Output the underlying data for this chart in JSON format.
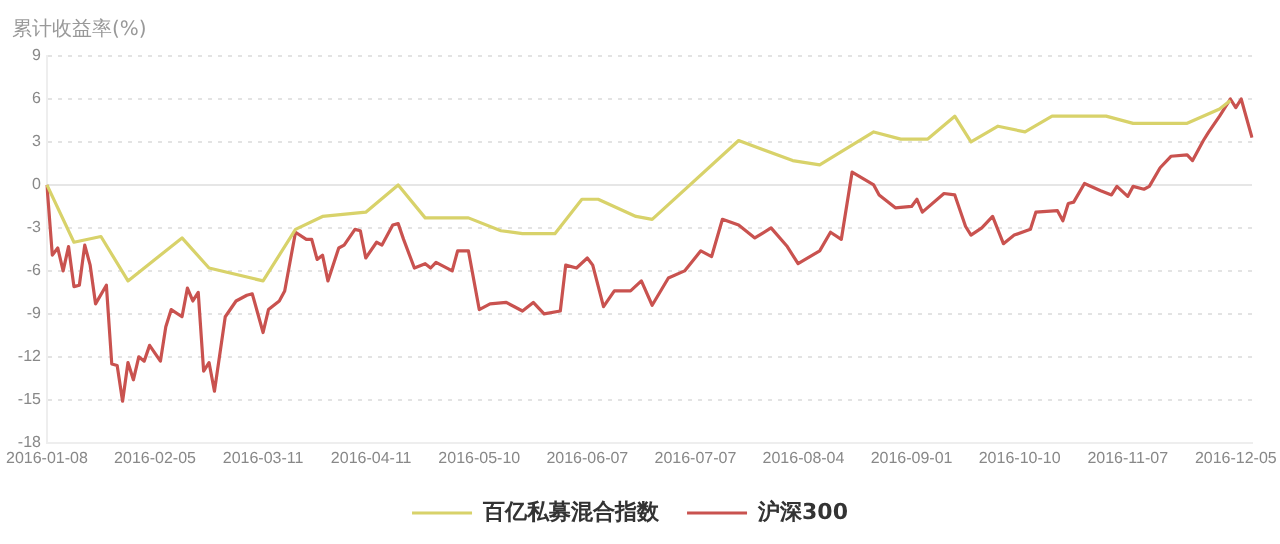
{
  "chart_data": {
    "type": "line",
    "ylabel": "累计收益率(%)",
    "categories": [
      "2016-01-08",
      null,
      null,
      null,
      null,
      null,
      null,
      null,
      null,
      null,
      null,
      null,
      null,
      null,
      null,
      null,
      null,
      null,
      null,
      null,
      "2016-02-05",
      null,
      null,
      null,
      null,
      null,
      null,
      null,
      null,
      null,
      null,
      null,
      null,
      null,
      null,
      null,
      null,
      null,
      null,
      null,
      "2016-03-11",
      null,
      null,
      null,
      null,
      null,
      null,
      null,
      null,
      null,
      null,
      null,
      null,
      null,
      null,
      null,
      null,
      null,
      null,
      null,
      "2016-04-11",
      null,
      null,
      null,
      null,
      null,
      null,
      null,
      null,
      null,
      null,
      null,
      null,
      null,
      null,
      null,
      null,
      null,
      null,
      null,
      "2016-05-10",
      null,
      null,
      null,
      null,
      null,
      null,
      null,
      null,
      null,
      null,
      null,
      null,
      null,
      null,
      null,
      null,
      null,
      null,
      null,
      "2016-06-07",
      null,
      null,
      null,
      null,
      null,
      null,
      null,
      null,
      null,
      null,
      null,
      null,
      null,
      null,
      null,
      null,
      null,
      null,
      null,
      "2016-07-07",
      null,
      null,
      null,
      null,
      null,
      null,
      null,
      null,
      null,
      null,
      null,
      null,
      null,
      null,
      null,
      null,
      null,
      null,
      null,
      "2016-08-04",
      null,
      null,
      null,
      null,
      null,
      null,
      null,
      null,
      null,
      null,
      null,
      null,
      null,
      null,
      null,
      null,
      null,
      null,
      null,
      "2016-09-01",
      null,
      null,
      null,
      null,
      null,
      null,
      null,
      null,
      null,
      null,
      null,
      null,
      null,
      null,
      null,
      null,
      null,
      null,
      null,
      "2016-10-10",
      null,
      null,
      null,
      null,
      null,
      null,
      null,
      null,
      null,
      null,
      null,
      null,
      null,
      null,
      null,
      null,
      null,
      null,
      null,
      "2016-11-07",
      null,
      null,
      null,
      null,
      null,
      null,
      null,
      null,
      null,
      null,
      null,
      null,
      null,
      null,
      null,
      null,
      null,
      null,
      null,
      "2016-12-05",
      null,
      null,
      null
    ],
    "ylim": [
      -18,
      9
    ],
    "yticks": [
      -18,
      -15,
      -12,
      -9,
      -6,
      -3,
      0,
      3,
      6,
      9
    ],
    "grid": "y",
    "legend": "bottom",
    "marker": "none",
    "line_style": "solid",
    "ref_lines": [
      {
        "axis": "y",
        "value": 0,
        "color": "#e6e6e6"
      }
    ],
    "series": [
      {
        "name": "百亿私募混合指数",
        "color": "#d8d26a",
        "values": [
          0,
          null,
          null,
          null,
          null,
          -4,
          null,
          null,
          null,
          null,
          -3.6,
          null,
          null,
          null,
          null,
          -6.7,
          null,
          null,
          null,
          null,
          null,
          null,
          null,
          null,
          null,
          -3.7,
          null,
          null,
          null,
          null,
          -5.8,
          null,
          null,
          null,
          null,
          null,
          null,
          null,
          null,
          null,
          -6.7,
          null,
          null,
          null,
          null,
          null,
          -3.1,
          null,
          null,
          null,
          null,
          -2.2,
          null,
          null,
          null,
          null,
          null,
          null,
          null,
          -1.9,
          null,
          null,
          null,
          null,
          null,
          0,
          null,
          null,
          null,
          null,
          -2.3,
          null,
          null,
          null,
          null,
          null,
          null,
          null,
          -2.3,
          null,
          null,
          null,
          null,
          null,
          -3.2,
          null,
          null,
          null,
          -3.4,
          null,
          null,
          null,
          null,
          null,
          -3.4,
          null,
          null,
          null,
          null,
          -1,
          null,
          null,
          -1,
          null,
          null,
          null,
          null,
          null,
          null,
          -2.2,
          null,
          null,
          -2.4,
          null,
          null,
          null,
          null,
          null,
          null,
          null,
          null,
          null,
          null,
          null,
          null,
          null,
          null,
          null,
          3.1,
          null,
          null,
          null,
          null,
          null,
          null,
          null,
          null,
          null,
          1.7,
          null,
          null,
          null,
          null,
          1.4,
          null,
          null,
          null,
          null,
          null,
          null,
          null,
          null,
          null,
          3.7,
          null,
          null,
          null,
          null,
          3.2,
          null,
          null,
          null,
          null,
          3.2,
          null,
          null,
          null,
          null,
          4.8,
          null,
          null,
          3,
          null,
          null,
          null,
          null,
          4.1,
          null,
          null,
          null,
          null,
          3.7,
          null,
          null,
          null,
          null,
          4.8,
          null,
          null,
          null,
          null,
          null,
          null,
          null,
          null,
          null,
          4.8,
          null,
          null,
          null,
          null,
          4.3,
          null,
          null,
          null,
          null,
          null,
          null,
          null,
          null,
          null,
          4.3,
          null,
          null,
          null,
          null,
          null,
          5.3,
          null,
          5.9,
          null,
          null,
          null,
          null
        ]
      },
      {
        "name": "沪深300",
        "color": "#c9524f",
        "values": [
          0,
          -4.9,
          -4.4,
          -6,
          -4.3,
          -7.1,
          -7,
          -4.2,
          -5.6,
          -8.3,
          null,
          -7,
          -12.5,
          -12.6,
          -15.1,
          -12.4,
          -13.6,
          -12,
          -12.3,
          -11.2,
          null,
          -12.3,
          -9.9,
          -8.7,
          null,
          -9.2,
          -7.2,
          -8.1,
          -7.5,
          -13,
          -12.4,
          -14.4,
          null,
          -9.2,
          null,
          -8.1,
          null,
          -7.7,
          -7.6,
          null,
          -10.3,
          -8.7,
          null,
          -8.1,
          -7.4,
          null,
          -3.3,
          null,
          -3.8,
          -3.8,
          -5.2,
          -4.9,
          -6.7,
          null,
          -4.4,
          -4.2,
          null,
          -3.1,
          -3.2,
          -5.1,
          null,
          -4,
          -4.2,
          null,
          -2.8,
          -2.7,
          -3.8,
          null,
          -5.8,
          null,
          -5.5,
          -5.8,
          -5.4,
          null,
          null,
          -6,
          -4.6,
          null,
          -4.6,
          null,
          -8.7,
          null,
          -8.3,
          null,
          null,
          -8.2,
          null,
          null,
          -8.8,
          null,
          -8.2,
          null,
          -9,
          null,
          null,
          -8.8,
          -5.6,
          null,
          -5.8,
          null,
          -5.1,
          -5.6,
          null,
          -8.5,
          null,
          -7.4,
          null,
          null,
          -7.4,
          null,
          -6.7,
          null,
          -8.4,
          null,
          null,
          -6.5,
          null,
          null,
          -6,
          null,
          null,
          -4.6,
          null,
          -5,
          null,
          -2.4,
          null,
          null,
          -2.8,
          null,
          null,
          -3.7,
          null,
          null,
          -3,
          null,
          null,
          -4.3,
          null,
          -5.5,
          null,
          null,
          null,
          -4.6,
          null,
          -3.3,
          null,
          -3.8,
          null,
          0.9,
          null,
          null,
          null,
          0,
          -0.7,
          null,
          null,
          -1.6,
          null,
          null,
          -1.5,
          -1,
          -1.9,
          null,
          null,
          null,
          -0.6,
          null,
          -0.7,
          null,
          -2.9,
          -3.5,
          null,
          -3,
          null,
          -2.2,
          null,
          -4.1,
          null,
          -3.5,
          null,
          null,
          -3.1,
          -1.9,
          null,
          null,
          null,
          -1.8,
          -2.5,
          -1.3,
          -1.2,
          null,
          0.1,
          null,
          null,
          -0.4,
          null,
          -0.7,
          -0.1,
          null,
          -0.8,
          -0.1,
          null,
          -0.3,
          -0.1,
          null,
          1.2,
          null,
          2,
          null,
          null,
          2.1,
          1.7,
          null,
          3.1,
          3.7,
          null,
          4.8,
          null,
          6,
          5.4,
          6,
          null,
          3.3
        ]
      }
    ]
  }
}
